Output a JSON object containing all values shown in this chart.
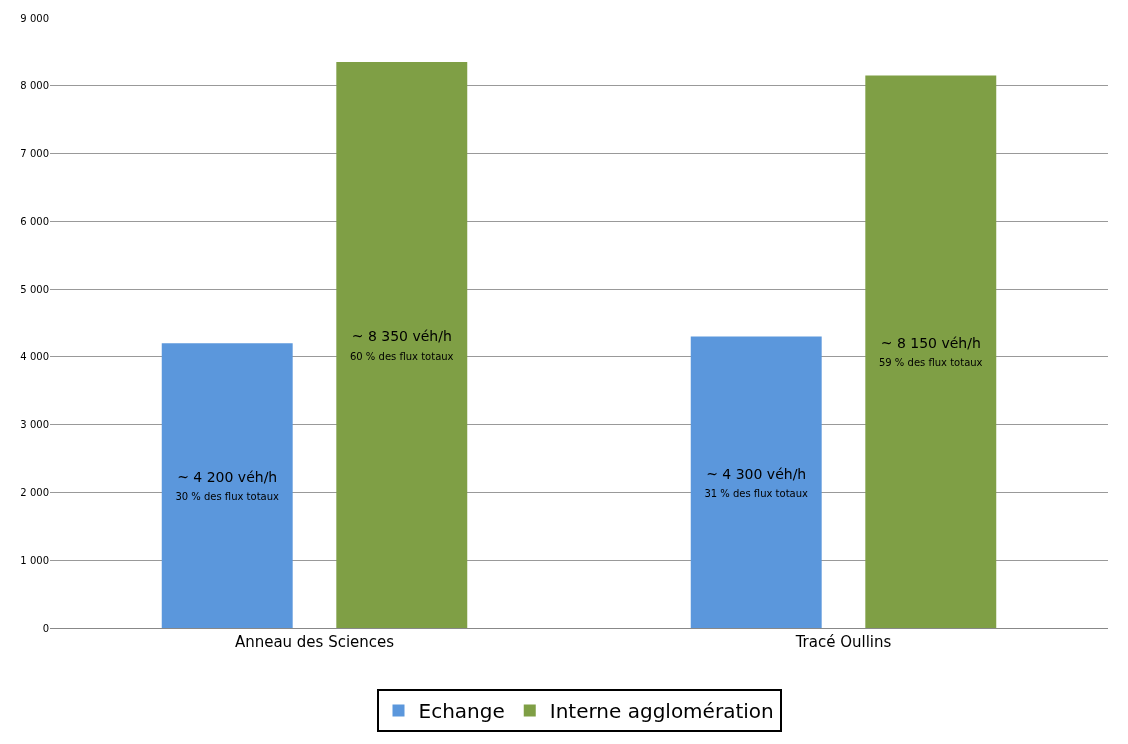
{
  "chart_data": {
    "type": "bar",
    "categories": [
      "Anneau des Sciences",
      "Tracé Oullins"
    ],
    "series": [
      {
        "name": "Echange",
        "color": "#5b97dc",
        "values": [
          4200,
          4300
        ],
        "value_labels": [
          "~ 4 200 véh/h\n30 % des flux totaux",
          "~ 4 300 véh/h\n31 % des flux totaux"
        ]
      },
      {
        "name": "Interne agglomération",
        "color": "#7f9f45",
        "values": [
          8350,
          8150
        ],
        "value_labels": [
          "~ 8 350 véh/h\n60 % des flux totaux",
          "~ 8 150 véh/h\n59 % des flux totaux"
        ]
      }
    ],
    "ylim": [
      0,
      9000
    ],
    "yticks": [
      0,
      {
        "value": 1000,
        "label": "1 000"
      },
      {
        "value": 2000,
        "label": "2 000"
      },
      {
        "value": 3000,
        "label": "3 000"
      },
      {
        "value": 4000,
        "label": "4 000"
      },
      {
        "value": 5000,
        "label": "5 000"
      },
      {
        "value": 6000,
        "label": "6 000"
      },
      {
        "value": 7000,
        "label": "7 000"
      },
      {
        "value": 8000,
        "label": "8 000"
      },
      {
        "value": 9000,
        "label": "9 000"
      }
    ],
    "grid": "y",
    "legend": "bottom"
  }
}
